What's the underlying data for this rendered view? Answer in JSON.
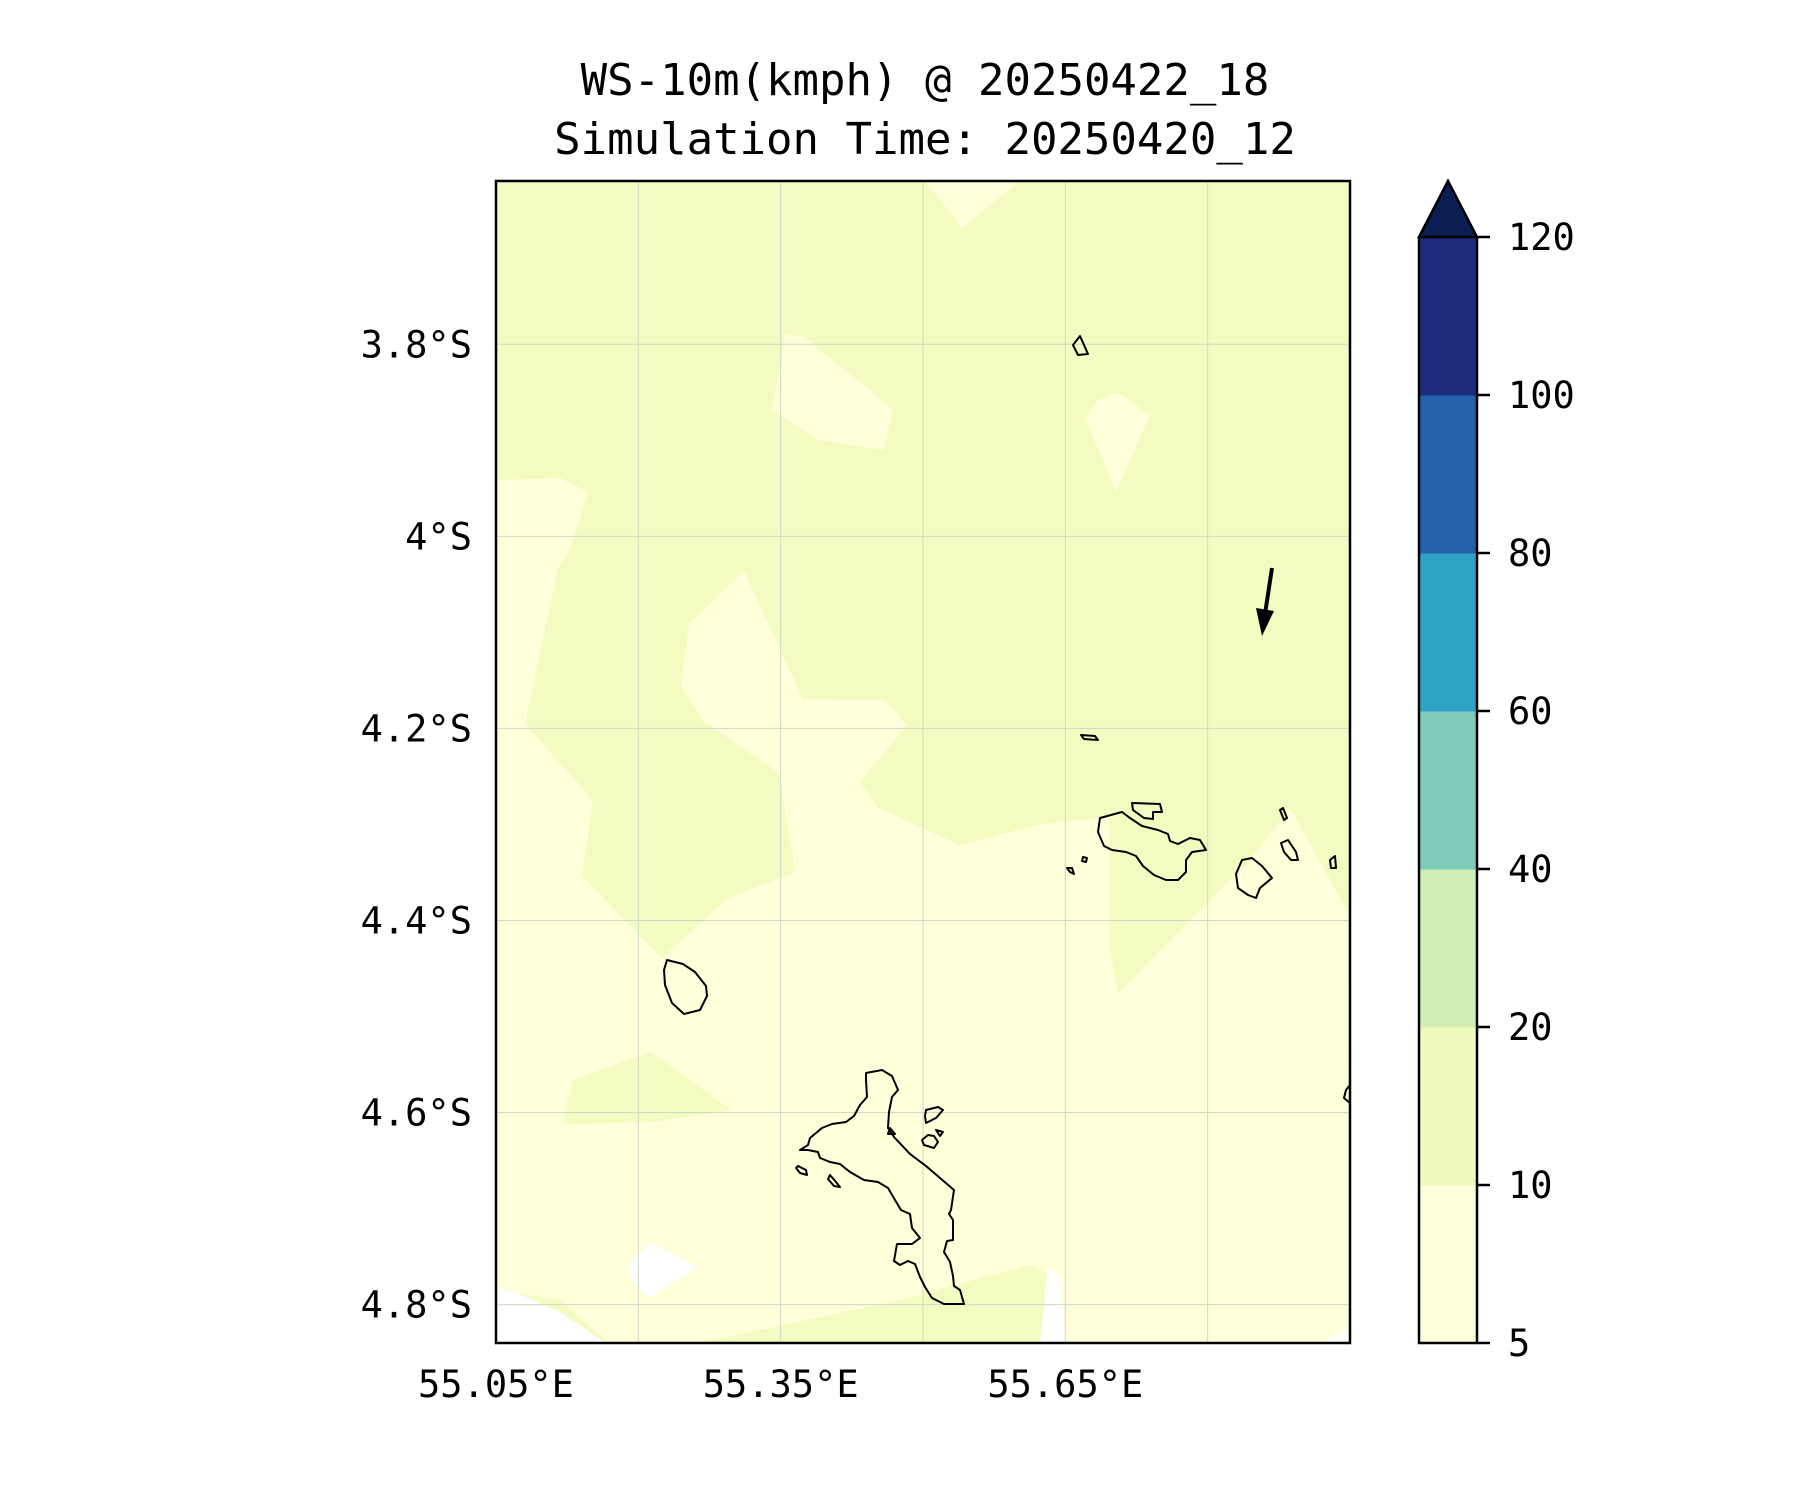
{
  "title": {
    "line1": "WS-10m(kmph) @ 20250422_18",
    "line2": "Simulation Time: 20250420_12"
  },
  "map": {
    "lon_range": [
      55.05,
      55.95
    ],
    "lat_range": [
      -4.84,
      -3.63
    ],
    "lat_ticks": [
      {
        "value": -3.8,
        "label": "3.8°S"
      },
      {
        "value": -4.0,
        "label": "4°S"
      },
      {
        "value": -4.2,
        "label": "4.2°S"
      },
      {
        "value": -4.4,
        "label": "4.4°S"
      },
      {
        "value": -4.6,
        "label": "4.6°S"
      },
      {
        "value": -4.8,
        "label": "4.8°S"
      }
    ],
    "lon_ticks": [
      {
        "value": 55.05,
        "label": "55.05°E"
      },
      {
        "value": 55.35,
        "label": "55.35°E"
      },
      {
        "value": 55.65,
        "label": "55.65°E"
      }
    ],
    "gridlines": true,
    "field_colors": {
      "5-10": "#ffffd9",
      "10-20": "#f3fbc0",
      "below-5": "#ffffff"
    },
    "wind_vector": {
      "direction": "south-southwest",
      "style": "black arrow"
    }
  },
  "colorbar": {
    "levels": [
      5,
      10,
      20,
      40,
      60,
      80,
      100,
      120
    ],
    "tick_labels": [
      "5",
      "10",
      "20",
      "40",
      "60",
      "80",
      "100",
      "120"
    ],
    "colors": [
      "#ffffd9",
      "#eef9bd",
      "#d0ecb4",
      "#7ecbbb",
      "#2fa2c6",
      "#2461ab",
      "#1d2c7d"
    ],
    "extend_color": "#0b1e53",
    "extend": "max"
  }
}
